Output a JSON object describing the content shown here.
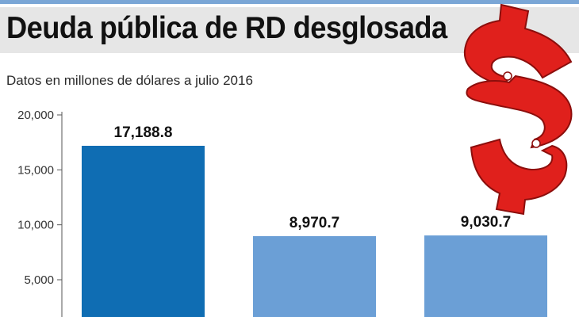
{
  "header": {
    "title": "Deuda pública de RD desglosada",
    "subtitle": "Datos en millones de dólares a julio 2016"
  },
  "decor": {
    "icon": "dollar-sign-icon",
    "icon_color": "#e0201c"
  },
  "colors": {
    "title_band": "#e6e6e6",
    "top_rule": "#7aa6d6",
    "bar_primary": "#0f6db3",
    "bar_secondary": "#6b9fd6"
  },
  "chart_data": {
    "type": "bar",
    "title": "",
    "xlabel": "",
    "ylabel": "",
    "categories": [
      "",
      "",
      ""
    ],
    "values": [
      17188.8,
      8970.7,
      9030.7
    ],
    "value_labels": [
      "17,188.8",
      "8,970.7",
      "9,030.7"
    ],
    "ylim": [
      0,
      20000
    ],
    "yticks": [
      5000,
      10000,
      15000,
      20000
    ],
    "ytick_labels": [
      "5,000",
      "10,000",
      "15,000",
      "20,000"
    ],
    "bar_colors": [
      "#0f6db3",
      "#6b9fd6",
      "#6b9fd6"
    ],
    "grid": false,
    "legend": "none"
  }
}
